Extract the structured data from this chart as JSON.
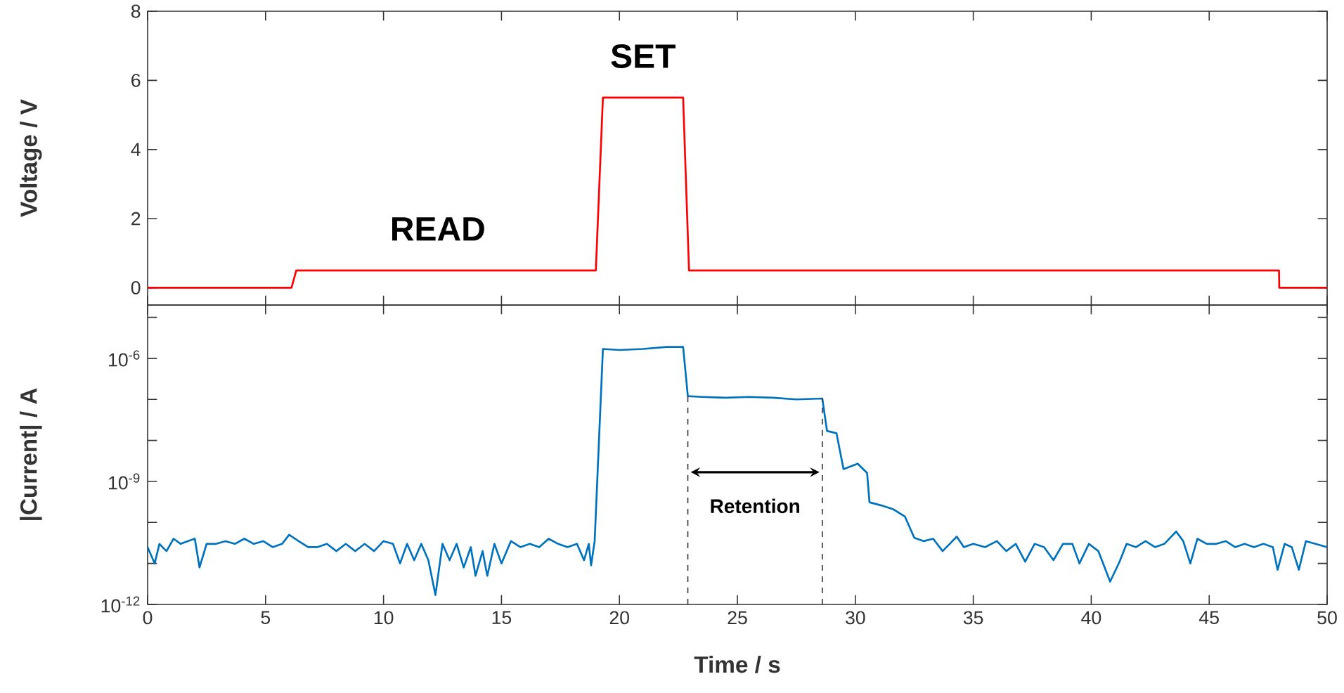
{
  "chart_data": [
    {
      "type": "line",
      "xlim": [
        0,
        50
      ],
      "xticks": [
        0,
        5,
        10,
        15,
        20,
        25,
        30,
        35,
        40,
        45,
        50
      ],
      "ylim": [
        -0.5,
        8
      ],
      "yticks": [
        0,
        2,
        4,
        6,
        8
      ],
      "ylabel": "Voltage / V",
      "tick_labels": "y",
      "series": [
        {
          "color": "#ff0000",
          "x": [
            0,
            6.1,
            6.3,
            19.0,
            19.3,
            22.7,
            22.95,
            47.96,
            47.97,
            50
          ],
          "values": [
            0,
            0,
            0.5,
            0.5,
            5.5,
            5.5,
            0.5,
            0.5,
            0,
            0
          ]
        }
      ],
      "annotations": [
        "READ",
        "SET"
      ]
    },
    {
      "type": "line",
      "xlim": [
        0,
        50
      ],
      "xticks": [
        0,
        5,
        10,
        15,
        20,
        25,
        30,
        35,
        40,
        45,
        50
      ],
      "ylim": [
        1e-12,
        2e-05
      ],
      "log": "y",
      "xlabel": "Time / s",
      "ylabel": "|Current| / A",
      "yticks": [
        {
          "value": 1e-12,
          "label": "10$^{-12}$"
        },
        {
          "value": 1e-11,
          "label": null
        },
        {
          "value": 1e-10,
          "label": null
        },
        {
          "value": 1e-09,
          "label": "10$^{-9}$"
        },
        {
          "value": 1e-08,
          "label": null
        },
        {
          "value": 1e-07,
          "label": null
        },
        {
          "value": 1e-06,
          "label": "10$^{-6}$"
        },
        {
          "value": 1e-05,
          "label": null
        }
      ],
      "series": [
        {
          "color": "#0072bd",
          "x": [
            0,
            0.3,
            0.5,
            0.8,
            1.1,
            1.4,
            1.7,
            2.0,
            2.2,
            2.5,
            2.9,
            3.3,
            3.7,
            4.1,
            4.5,
            4.9,
            5.3,
            5.7,
            6.0,
            6.4,
            6.8,
            7.2,
            7.6,
            8.0,
            8.4,
            8.8,
            9.2,
            9.6,
            10.0,
            10.4,
            10.7,
            11.0,
            11.3,
            11.6,
            11.9,
            12.2,
            12.5,
            12.8,
            13.1,
            13.4,
            13.7,
            13.9,
            14.2,
            14.4,
            14.7,
            15.0,
            15.4,
            15.8,
            16.2,
            16.6,
            17.0,
            17.4,
            17.8,
            18.2,
            18.5,
            18.7,
            18.8,
            18.95,
            19.3,
            20.0,
            21.0,
            22.0,
            22.7,
            22.9,
            23.5,
            24.5,
            25.5,
            26.5,
            27.5,
            28.6,
            28.8,
            29.2,
            29.5,
            30.1,
            30.5,
            30.6,
            31.1,
            31.6,
            32.1,
            32.5,
            32.9,
            33.3,
            33.7,
            34.0,
            34.3,
            34.6,
            35.0,
            35.5,
            36.0,
            36.4,
            36.8,
            37.2,
            37.6,
            38.0,
            38.4,
            38.8,
            39.2,
            39.5,
            39.9,
            40.3,
            40.8,
            41.2,
            41.5,
            41.9,
            42.3,
            42.7,
            43.1,
            43.6,
            43.9,
            44.2,
            44.5,
            44.9,
            45.3,
            45.7,
            46.1,
            46.5,
            46.9,
            47.3,
            47.7,
            47.9,
            48.2,
            48.5,
            48.8,
            49.1,
            49.5,
            50
          ],
          "values": [
            2.5e-11,
            1e-11,
            3e-11,
            2e-11,
            4e-11,
            3e-11,
            3.5e-11,
            4e-11,
            8e-12,
            3e-11,
            3e-11,
            3.5e-11,
            3e-11,
            4e-11,
            3e-11,
            3.5e-11,
            2.5e-11,
            3e-11,
            5e-11,
            3.5e-11,
            2.5e-11,
            2.5e-11,
            3e-11,
            2e-11,
            3e-11,
            2e-11,
            3e-11,
            2e-11,
            3.5e-11,
            3e-11,
            1e-11,
            3e-11,
            1.2e-11,
            3e-11,
            1.2e-11,
            1.7e-12,
            3e-11,
            1.2e-11,
            3e-11,
            8e-12,
            2.5e-11,
            5e-12,
            2e-11,
            5e-12,
            3e-11,
            1e-11,
            3.5e-11,
            2.5e-11,
            3e-11,
            2.5e-11,
            4e-11,
            3e-11,
            2.5e-11,
            3e-11,
            1.2e-11,
            3e-11,
            9e-12,
            3.5e-11,
            1.7e-06,
            1.6e-06,
            1.7e-06,
            1.9e-06,
            1.9e-06,
            1.2e-07,
            1.15e-07,
            1.1e-07,
            1.15e-07,
            1.1e-07,
            1e-07,
            1.05e-07,
            1.7e-08,
            1.5e-08,
            2e-09,
            2.7e-09,
            1.6e-09,
            3.1e-10,
            2.6e-10,
            2.1e-10,
            1.4e-10,
            4.2e-11,
            3.5e-11,
            4e-11,
            2e-11,
            3e-11,
            4.5e-11,
            2.5e-11,
            3e-11,
            2.5e-11,
            3.5e-11,
            2e-11,
            3e-11,
            1.1e-11,
            3e-11,
            2.5e-11,
            1.2e-11,
            3e-11,
            3e-11,
            1e-11,
            3e-11,
            2e-11,
            3.6e-12,
            1.1e-11,
            3e-11,
            2.5e-11,
            3.5e-11,
            2.5e-11,
            3e-11,
            6e-11,
            3.5e-11,
            1e-11,
            4e-11,
            3e-11,
            3e-11,
            3.5e-11,
            2.5e-11,
            3e-11,
            2.5e-11,
            3e-11,
            2.5e-11,
            7e-12,
            3e-11,
            2.5e-11,
            7e-12,
            3.5e-11,
            3e-11,
            2.5e-11
          ]
        }
      ],
      "ref_lines": [
        {
          "axis": "x",
          "value": 22.9,
          "line_style": "dashed",
          "color": "#333333"
        },
        {
          "axis": "x",
          "value": 28.6,
          "line_style": "dashed",
          "color": "#333333"
        }
      ],
      "annotations": [
        "Retention"
      ]
    }
  ]
}
